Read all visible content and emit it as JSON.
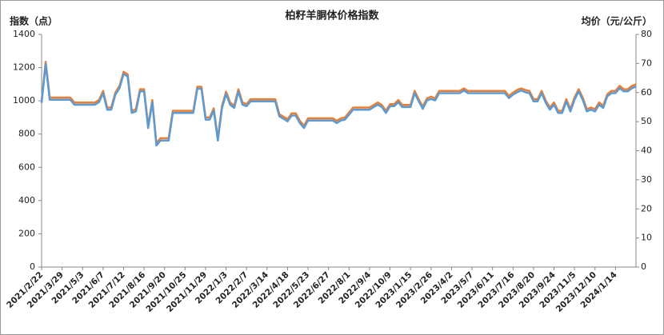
{
  "chart_data": {
    "type": "line",
    "title": "柏籽羊胴体价格指数",
    "y_label": "指数（点）",
    "y2_label": "均价（元/公斤）",
    "categories": [
      "2021/2/22",
      null,
      null,
      null,
      null,
      "2021/3/29",
      null,
      null,
      null,
      null,
      "2021/5/3",
      null,
      null,
      null,
      null,
      "2021/6/7",
      null,
      null,
      null,
      null,
      "2021/7/12",
      null,
      null,
      null,
      null,
      "2021/8/16",
      null,
      null,
      null,
      null,
      "2021/9/20",
      null,
      null,
      null,
      null,
      "2021/10/25",
      null,
      null,
      null,
      null,
      "2021/11/29",
      null,
      null,
      null,
      null,
      "2022/1/3",
      null,
      null,
      null,
      null,
      "2022/2/7",
      null,
      null,
      null,
      null,
      "2022/3/14",
      null,
      null,
      null,
      null,
      "2022/4/18",
      null,
      null,
      null,
      null,
      "2022/5/23",
      null,
      null,
      null,
      null,
      "2022/6/27",
      null,
      null,
      null,
      null,
      "2022/8/1",
      null,
      null,
      null,
      null,
      "2022/9/4",
      null,
      null,
      null,
      null,
      "2022/10/9",
      null,
      null,
      null,
      null,
      "2023/1/15",
      null,
      null,
      null,
      null,
      "2023/2/26",
      null,
      null,
      null,
      null,
      "2023/4/2",
      null,
      null,
      null,
      null,
      "2023/5/7",
      null,
      null,
      null,
      null,
      "2023/6/11",
      null,
      null,
      null,
      null,
      "2023/7/16",
      null,
      null,
      null,
      null,
      "2023/8/20",
      null,
      null,
      null,
      null,
      "2023/9/24",
      null,
      null,
      null,
      null,
      "2023/11/5",
      null,
      null,
      null,
      null,
      "2023/12/10",
      null,
      null,
      null,
      null,
      "2024/1/14",
      null,
      null,
      null,
      null,
      null
    ],
    "series": [
      {
        "name": "指数",
        "color": "#ed7d31",
        "values": [
          1000,
          1235,
          1020,
          1020,
          1020,
          1020,
          1020,
          1020,
          990,
          990,
          990,
          990,
          990,
          990,
          1005,
          1060,
          960,
          960,
          1050,
          1090,
          1175,
          1160,
          940,
          950,
          1070,
          1070,
          850,
          1005,
          745,
          775,
          775,
          775,
          940,
          940,
          940,
          940,
          940,
          940,
          1085,
          1085,
          900,
          900,
          955,
          775,
          970,
          1055,
          990,
          970,
          1070,
          990,
          980,
          1010,
          1010,
          1010,
          1010,
          1010,
          1010,
          1010,
          920,
          905,
          890,
          925,
          925,
          880,
          850,
          895,
          895,
          895,
          895,
          895,
          895,
          895,
          880,
          895,
          900,
          930,
          960,
          960,
          960,
          960,
          960,
          975,
          990,
          975,
          940,
          980,
          980,
          1005,
          975,
          975,
          975,
          1060,
          1010,
          965,
          1015,
          1025,
          1015,
          1060,
          1060,
          1060,
          1060,
          1060,
          1060,
          1075,
          1060,
          1060,
          1060,
          1060,
          1060,
          1060,
          1060,
          1060,
          1060,
          1060,
          1030,
          1050,
          1065,
          1075,
          1065,
          1060,
          1010,
          1010,
          1060,
          1000,
          960,
          990,
          940,
          940,
          1010,
          950,
          1020,
          1070,
          1020,
          950,
          960,
          950,
          990,
          970,
          1040,
          1060,
          1060,
          1090,
          1070,
          1070,
          1090,
          1100
        ]
      },
      {
        "name": "均价",
        "color": "#5b9bd5",
        "axis": "y2",
        "values": [
          56.4,
          69.8,
          57.5,
          57.5,
          57.5,
          57.5,
          57.5,
          57.5,
          55.8,
          55.8,
          55.8,
          55.8,
          55.8,
          55.8,
          56.7,
          59.8,
          54.1,
          54.1,
          59.3,
          61.5,
          66.4,
          65.5,
          53.0,
          53.5,
          60.4,
          60.4,
          47.8,
          56.7,
          41.8,
          43.5,
          43.5,
          43.5,
          53.0,
          53.0,
          53.0,
          53.0,
          53.0,
          53.0,
          61.3,
          61.3,
          50.7,
          50.7,
          53.8,
          43.5,
          54.7,
          59.5,
          55.8,
          54.7,
          60.4,
          55.8,
          55.3,
          57.0,
          57.0,
          57.0,
          57.0,
          57.0,
          57.0,
          57.0,
          51.8,
          51.0,
          50.1,
          52.1,
          52.1,
          49.5,
          47.8,
          50.4,
          50.4,
          50.4,
          50.4,
          50.4,
          50.4,
          50.4,
          49.5,
          50.4,
          50.7,
          52.4,
          54.1,
          54.1,
          54.1,
          54.1,
          54.1,
          55.0,
          55.8,
          55.0,
          53.0,
          55.3,
          55.3,
          56.7,
          55.0,
          55.0,
          55.0,
          59.8,
          57.0,
          54.4,
          57.3,
          57.8,
          57.3,
          59.8,
          59.8,
          59.8,
          59.8,
          59.8,
          59.8,
          60.7,
          59.8,
          59.8,
          59.8,
          59.8,
          59.8,
          59.8,
          59.8,
          59.8,
          59.8,
          59.8,
          58.1,
          59.3,
          60.1,
          60.7,
          60.1,
          59.8,
          57.0,
          57.0,
          59.8,
          56.4,
          54.1,
          55.8,
          53.0,
          53.0,
          57.0,
          53.5,
          57.5,
          60.4,
          57.5,
          53.5,
          54.1,
          53.5,
          55.8,
          54.7,
          58.7,
          59.8,
          59.8,
          61.5,
          60.4,
          60.4,
          61.5,
          62.1
        ]
      }
    ],
    "ylim": [
      0,
      1400
    ],
    "yticks": [
      0,
      200,
      400,
      600,
      800,
      1000,
      1200,
      1400
    ],
    "y2lim": [
      0,
      80
    ],
    "y2ticks": [
      0,
      10,
      20,
      30,
      40,
      50,
      60,
      70,
      80
    ],
    "grid": false
  }
}
